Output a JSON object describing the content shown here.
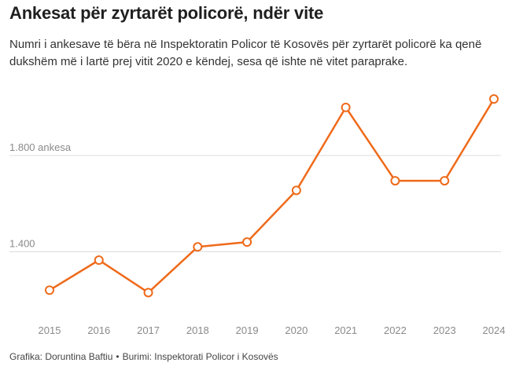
{
  "title": "Ankesat për zyrtarët policorë, ndër vite",
  "subtitle": "Numri i ankesave të bëra në Inspektoratin Policor të Kosovës për zyrtarët policorë ka qenë dukshëm më i lartë prej vitit 2020 e këndej, sesa që ishte në vitet paraprake.",
  "footer": {
    "credit": "Grafika: Doruntina Baftiu",
    "separator": "•",
    "source": "Burimi: Inspektorati Policor i Kosovës"
  },
  "colors": {
    "line": "#ef6a1a",
    "grid": "#dcdcdc",
    "axis_text": "#8a8a8a"
  },
  "chart_data": {
    "type": "line",
    "title": "Ankesat për zyrtarët policorë, ndër vite",
    "xlabel": "",
    "ylabel": "",
    "categories": [
      "2015",
      "2016",
      "2017",
      "2018",
      "2019",
      "2020",
      "2021",
      "2022",
      "2023",
      "2024"
    ],
    "series": [
      {
        "name": "Ankesat",
        "values": [
          1240,
          1365,
          1230,
          1420,
          1440,
          1655,
          2000,
          1695,
          1695,
          2035
        ]
      }
    ],
    "ylim": [
      1140,
      2120
    ],
    "yticks": [
      {
        "value": 1400,
        "label": "1.400"
      },
      {
        "value": 1800,
        "label": "1.800 ankesa"
      }
    ],
    "grid": true,
    "legend": "none"
  }
}
